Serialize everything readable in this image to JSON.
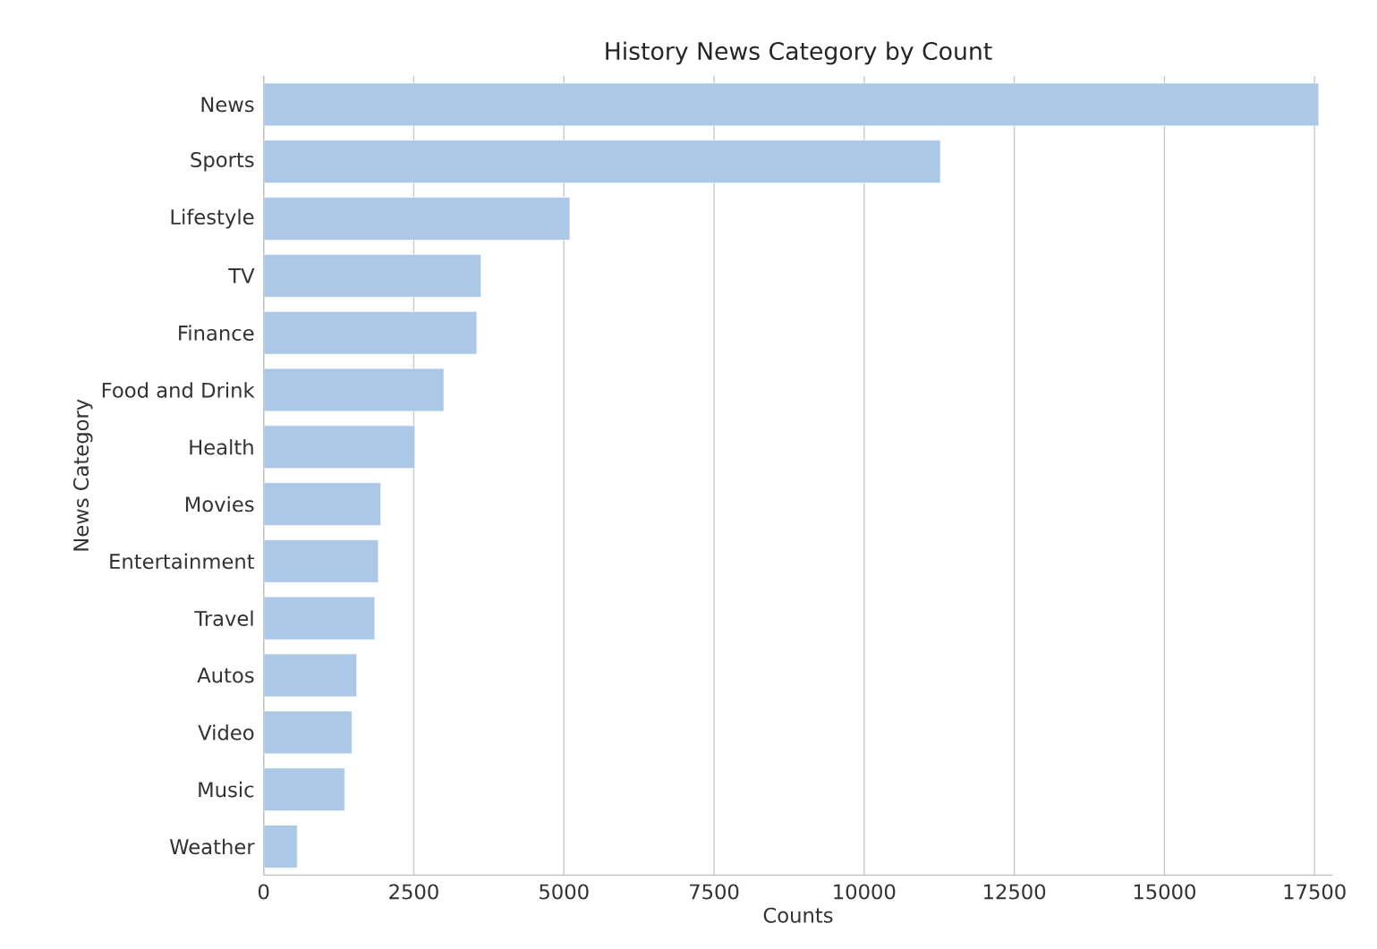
{
  "chart_data": {
    "type": "bar",
    "orientation": "horizontal",
    "title": "History News Category by Count",
    "xlabel": "Counts",
    "ylabel": "News Category",
    "categories": [
      "News",
      "Sports",
      "Lifestyle",
      "TV",
      "Finance",
      "Food and Drink",
      "Health",
      "Movies",
      "Entertainment",
      "Travel",
      "Autos",
      "Video",
      "Music",
      "Weather"
    ],
    "values": [
      17570,
      11270,
      5100,
      3620,
      3550,
      3000,
      2520,
      1950,
      1910,
      1850,
      1550,
      1470,
      1350,
      560
    ],
    "color": "#abc8e7",
    "xlim": [
      0,
      17800
    ],
    "xticks": [
      0,
      2500,
      5000,
      7500,
      10000,
      12500,
      15000,
      17500
    ],
    "grid": "x"
  }
}
